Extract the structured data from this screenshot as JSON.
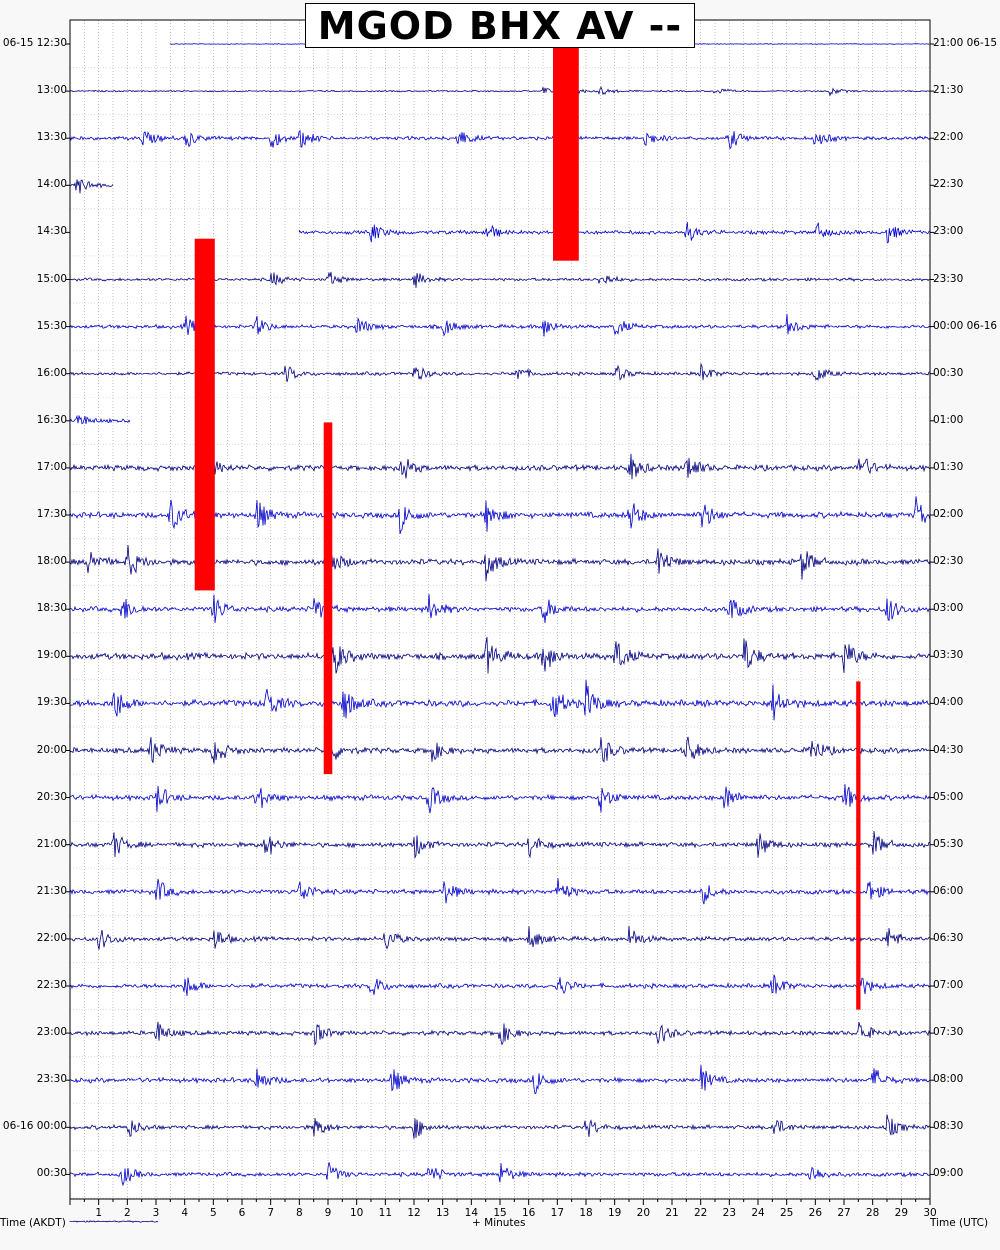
{
  "chart_data": {
    "type": "helicorder",
    "title": "MGOD BHX AV --",
    "xlabel": "+ Minutes",
    "left_axis_label": "Time (AKDT)",
    "right_axis_label": "Time (UTC)",
    "xlim": [
      0,
      30
    ],
    "x_ticks": [
      1,
      2,
      3,
      4,
      5,
      6,
      7,
      8,
      9,
      10,
      11,
      12,
      13,
      14,
      15,
      16,
      17,
      18,
      19,
      20,
      21,
      22,
      23,
      24,
      25,
      26,
      27,
      28,
      29,
      30
    ],
    "left_tick_labels": [
      "06-15 12:30",
      "13:00",
      "13:30",
      "14:00",
      "14:30",
      "15:00",
      "15:30",
      "16:00",
      "16:30",
      "17:00",
      "17:30",
      "18:00",
      "18:30",
      "19:00",
      "19:30",
      "20:00",
      "20:30",
      "21:00",
      "21:30",
      "22:00",
      "22:30",
      "23:00",
      "23:30",
      "06-16 00:00",
      "00:30"
    ],
    "right_tick_labels": [
      "21:00 06-15",
      "21:30",
      "22:00",
      "22:30",
      "23:00",
      "23:30",
      "00:00 06-16",
      "00:30",
      "01:00",
      "01:30",
      "02:00",
      "02:30",
      "03:00",
      "03:30",
      "04:00",
      "04:30",
      "05:00",
      "05:30",
      "06:00",
      "06:30",
      "07:00",
      "07:30",
      "08:00",
      "08:30",
      "09:00"
    ],
    "trace_colors": [
      "#0000cc",
      "#000080"
    ],
    "clip_color": "#ff0000",
    "grid": true,
    "traces": [
      {
        "start": 3.5,
        "end": 30,
        "amp": 0.2,
        "event_minutes": [
          11.5
        ]
      },
      {
        "start": 0,
        "end": 30,
        "amp": 0.4,
        "event_minutes": [
          16.5,
          17.5,
          18.5,
          22.5,
          26.5
        ]
      },
      {
        "start": 0,
        "end": 30,
        "amp": 1.0,
        "event_minutes": [
          2.5,
          4.0,
          7.0,
          8.0,
          13.5,
          20.0,
          23.0,
          26.0
        ]
      },
      {
        "start": 0,
        "end": 1.5,
        "amp": 1.0,
        "event_minutes": [
          0.2
        ]
      },
      {
        "start": 8,
        "end": 30,
        "amp": 1.0,
        "event_minutes": [
          10.5,
          14.5,
          17.0,
          21.5,
          26.0,
          28.5
        ]
      },
      {
        "start": 0,
        "end": 30,
        "amp": 0.8,
        "event_minutes": [
          7.0,
          9.0,
          12.0,
          18.5
        ]
      },
      {
        "start": 0,
        "end": 30,
        "amp": 1.0,
        "event_minutes": [
          4.0,
          6.5,
          10.0,
          13.0,
          16.5,
          19.0,
          25.0
        ]
      },
      {
        "start": 0,
        "end": 30,
        "amp": 0.9,
        "event_minutes": [
          7.5,
          12.0,
          15.5,
          19.0,
          22.0,
          26.0
        ]
      },
      {
        "start": 0,
        "end": 2.1,
        "amp": 0.9,
        "event_minutes": [
          0.2
        ]
      },
      {
        "start": 0,
        "end": 30,
        "amp": 1.5,
        "event_minutes": [
          4.7,
          11.5,
          19.5,
          21.5,
          27.5
        ]
      },
      {
        "start": 0,
        "end": 30,
        "amp": 1.6,
        "event_minutes": [
          3.5,
          6.5,
          11.5,
          14.5,
          19.5,
          22.0,
          29.5
        ]
      },
      {
        "start": 0,
        "end": 30,
        "amp": 1.6,
        "event_minutes": [
          0.6,
          2.0,
          9.0,
          14.5,
          20.5,
          25.5
        ]
      },
      {
        "start": 0,
        "end": 30,
        "amp": 1.4,
        "event_minutes": [
          1.8,
          5.0,
          8.5,
          12.5,
          16.5,
          23.0,
          28.5
        ]
      },
      {
        "start": 0,
        "end": 30,
        "amp": 1.8,
        "event_minutes": [
          9.2,
          14.5,
          16.5,
          19.0,
          23.5,
          27.0
        ]
      },
      {
        "start": 0,
        "end": 30,
        "amp": 1.8,
        "event_minutes": [
          1.5,
          6.8,
          9.5,
          16.8,
          18.0,
          24.5
        ]
      },
      {
        "start": 0,
        "end": 30,
        "amp": 1.5,
        "event_minutes": [
          2.8,
          5.0,
          9.0,
          12.5,
          18.5,
          21.5,
          25.8
        ]
      },
      {
        "start": 0,
        "end": 30,
        "amp": 1.4,
        "event_minutes": [
          3.0,
          6.5,
          12.5,
          18.5,
          22.8,
          27.0
        ]
      },
      {
        "start": 0,
        "end": 30,
        "amp": 1.3,
        "event_minutes": [
          1.5,
          6.8,
          12.0,
          16.0,
          24.0,
          28.0
        ]
      },
      {
        "start": 0,
        "end": 30,
        "amp": 1.3,
        "event_minutes": [
          3.0,
          8.0,
          13.0,
          17.0,
          22.0,
          27.8
        ]
      },
      {
        "start": 0,
        "end": 30,
        "amp": 1.2,
        "event_minutes": [
          1.0,
          5.0,
          11.0,
          16.0,
          19.5,
          28.5
        ]
      },
      {
        "start": 0,
        "end": 30,
        "amp": 1.2,
        "event_minutes": [
          4.0,
          10.5,
          17.0,
          24.5,
          27.5
        ]
      },
      {
        "start": 0,
        "end": 30,
        "amp": 1.2,
        "event_minutes": [
          3.0,
          8.5,
          15.0,
          20.5,
          27.5
        ]
      },
      {
        "start": 0,
        "end": 30,
        "amp": 1.3,
        "event_minutes": [
          6.5,
          11.2,
          16.2,
          22.0,
          28.0
        ]
      },
      {
        "start": 0,
        "end": 30,
        "amp": 1.1,
        "event_minutes": [
          2.0,
          8.5,
          12.0,
          18.0,
          24.5,
          28.5
        ]
      },
      {
        "start": 0,
        "end": 30,
        "amp": 1.1,
        "event_minutes": [
          1.8,
          9.0,
          12.5,
          15.0,
          25.8
        ]
      },
      {
        "start": 0,
        "end": 3.1,
        "amp": 0.4,
        "event_minutes": []
      }
    ],
    "clipped_segments": [
      {
        "minute": 17.3,
        "width_minutes": 0.9,
        "from_row": 0,
        "to_row": 4.6
      },
      {
        "minute": 4.7,
        "width_minutes": 0.7,
        "from_row": 4.6,
        "to_row": 11.6
      },
      {
        "minute": 9.0,
        "width_minutes": 0.3,
        "from_row": 8.5,
        "to_row": 15.5
      },
      {
        "minute": 27.5,
        "width_minutes": 0.15,
        "from_row": 14.0,
        "to_row": 20.5
      }
    ]
  }
}
